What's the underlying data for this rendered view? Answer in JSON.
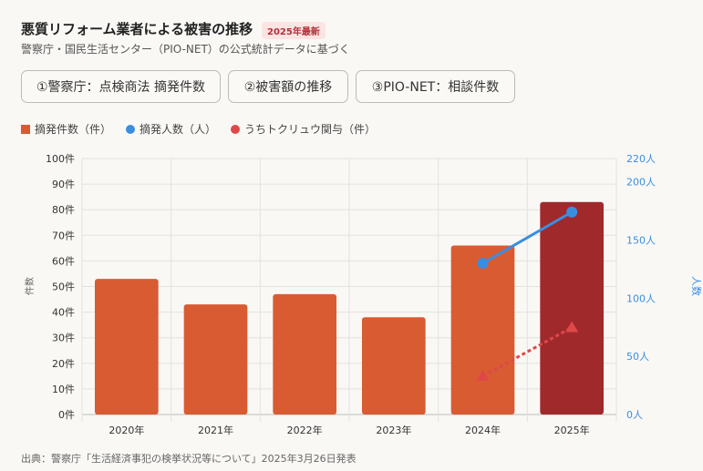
{
  "header": {
    "title": "悪質リフォーム業者による被害の推移",
    "badge": "2025年最新",
    "subtitle": "警察庁・国民生活センター（PIO-NET）の公式統計データに基づく"
  },
  "tabs": [
    {
      "label": "①警察庁：点検商法 摘発件数"
    },
    {
      "label": "②被害額の推移"
    },
    {
      "label": "③PIO-NET：相談件数"
    }
  ],
  "legend": [
    {
      "label": "摘発件数（件）",
      "color": "#d95b32"
    },
    {
      "label": "摘発人数（人）",
      "color": "#3a8ee0"
    },
    {
      "label": "うちトクリュウ関与（件）",
      "color": "#e04848"
    }
  ],
  "footer": "出典：警察庁「生活経済事犯の検挙状況等について」2025年3月26日発表",
  "chart_data": {
    "type": "bar",
    "categories": [
      "2020年",
      "2021年",
      "2022年",
      "2023年",
      "2024年",
      "2025年"
    ],
    "ylabel": "件数",
    "y2label": "人数",
    "ylim": [
      0,
      100
    ],
    "y2lim": [
      0,
      220
    ],
    "yticks": [
      "0件",
      "10件",
      "20件",
      "30件",
      "40件",
      "50件",
      "60件",
      "70件",
      "80件",
      "90件",
      "100件"
    ],
    "y2ticks": [
      "0人",
      "50人",
      "100人",
      "150人",
      "200人",
      "220人"
    ],
    "y2tick_values": [
      0,
      50,
      100,
      150,
      200,
      220
    ],
    "grid": true,
    "series": [
      {
        "name": "摘発件数（件）",
        "type": "bar",
        "axis": "left",
        "values": [
          53,
          43,
          47,
          38,
          66,
          83
        ],
        "colors": [
          "#d95b32",
          "#d95b32",
          "#d95b32",
          "#d95b32",
          "#d95b32",
          "#a0292c"
        ]
      },
      {
        "name": "摘発人数（人）",
        "type": "line",
        "axis": "right",
        "values": [
          null,
          null,
          null,
          null,
          130,
          174
        ],
        "color": "#3a8ee0"
      },
      {
        "name": "うちトクリュウ関与（件）",
        "type": "line-dashed",
        "axis": "left",
        "values": [
          null,
          null,
          null,
          null,
          15,
          34
        ],
        "color": "#e04848"
      }
    ]
  }
}
